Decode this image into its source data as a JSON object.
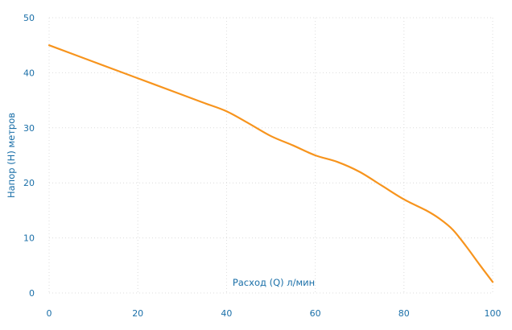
{
  "colors": {
    "line": "#f7941d",
    "grid": "#dcdcdc",
    "text": "#1a6fa8"
  },
  "chart_data": {
    "type": "line",
    "xlabel": "Расход (Q) л/мин",
    "ylabel": "Напор (Н) метров",
    "xlim": [
      0,
      100
    ],
    "ylim": [
      0,
      50
    ],
    "xticks": [
      0,
      20,
      40,
      60,
      80,
      100
    ],
    "yticks": [
      0,
      10,
      20,
      30,
      40,
      50
    ],
    "grid": true,
    "series": [
      {
        "x": [
          0,
          10,
          20,
          30,
          35,
          40,
          45,
          50,
          55,
          60,
          65,
          70,
          75,
          80,
          85,
          88,
          91,
          94,
          97,
          100
        ],
        "y": [
          45,
          42,
          39,
          36,
          34.5,
          33,
          30.8,
          28.5,
          26.8,
          25,
          23.8,
          22,
          19.5,
          17,
          15,
          13.5,
          11.5,
          8.5,
          5.2,
          2
        ]
      }
    ]
  }
}
